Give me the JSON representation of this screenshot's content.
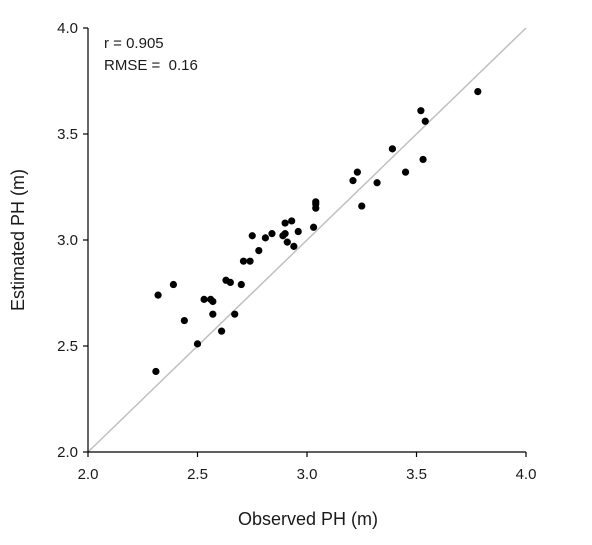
{
  "chart_data": {
    "type": "scatter",
    "xlabel": "Observed PH (m)",
    "ylabel": "Estimated PH (m)",
    "xlim": [
      2.0,
      4.0
    ],
    "ylim": [
      2.0,
      4.0
    ],
    "x_ticks": [
      "2.0",
      "2.5",
      "3.0",
      "3.5",
      "4.0"
    ],
    "y_ticks": [
      "2.0",
      "2.5",
      "3.0",
      "3.5",
      "4.0"
    ],
    "annotations": [
      "r = 0.905",
      "RMSE =  0.16"
    ],
    "reference_line": {
      "kind": "1:1",
      "color": "#c0c0c0"
    },
    "grid": false,
    "point_color": "#000000",
    "points": [
      {
        "x": 2.31,
        "y": 2.38
      },
      {
        "x": 2.32,
        "y": 2.74
      },
      {
        "x": 2.39,
        "y": 2.79
      },
      {
        "x": 2.44,
        "y": 2.62
      },
      {
        "x": 2.5,
        "y": 2.51
      },
      {
        "x": 2.53,
        "y": 2.72
      },
      {
        "x": 2.56,
        "y": 2.72
      },
      {
        "x": 2.57,
        "y": 2.65
      },
      {
        "x": 2.57,
        "y": 2.71
      },
      {
        "x": 2.61,
        "y": 2.57
      },
      {
        "x": 2.63,
        "y": 2.81
      },
      {
        "x": 2.65,
        "y": 2.8
      },
      {
        "x": 2.67,
        "y": 2.65
      },
      {
        "x": 2.7,
        "y": 2.79
      },
      {
        "x": 2.71,
        "y": 2.9
      },
      {
        "x": 2.74,
        "y": 2.9
      },
      {
        "x": 2.75,
        "y": 3.02
      },
      {
        "x": 2.78,
        "y": 2.95
      },
      {
        "x": 2.81,
        "y": 3.01
      },
      {
        "x": 2.84,
        "y": 3.03
      },
      {
        "x": 2.89,
        "y": 3.02
      },
      {
        "x": 2.9,
        "y": 3.03
      },
      {
        "x": 2.9,
        "y": 3.08
      },
      {
        "x": 2.91,
        "y": 2.99
      },
      {
        "x": 2.93,
        "y": 3.09
      },
      {
        "x": 2.94,
        "y": 2.97
      },
      {
        "x": 2.96,
        "y": 3.04
      },
      {
        "x": 3.03,
        "y": 3.06
      },
      {
        "x": 3.04,
        "y": 3.15
      },
      {
        "x": 3.04,
        "y": 3.17
      },
      {
        "x": 3.04,
        "y": 3.18
      },
      {
        "x": 3.21,
        "y": 3.28
      },
      {
        "x": 3.23,
        "y": 3.32
      },
      {
        "x": 3.25,
        "y": 3.16
      },
      {
        "x": 3.32,
        "y": 3.27
      },
      {
        "x": 3.39,
        "y": 3.43
      },
      {
        "x": 3.45,
        "y": 3.32
      },
      {
        "x": 3.52,
        "y": 3.61
      },
      {
        "x": 3.53,
        "y": 3.38
      },
      {
        "x": 3.54,
        "y": 3.56
      },
      {
        "x": 3.78,
        "y": 3.7
      }
    ]
  }
}
